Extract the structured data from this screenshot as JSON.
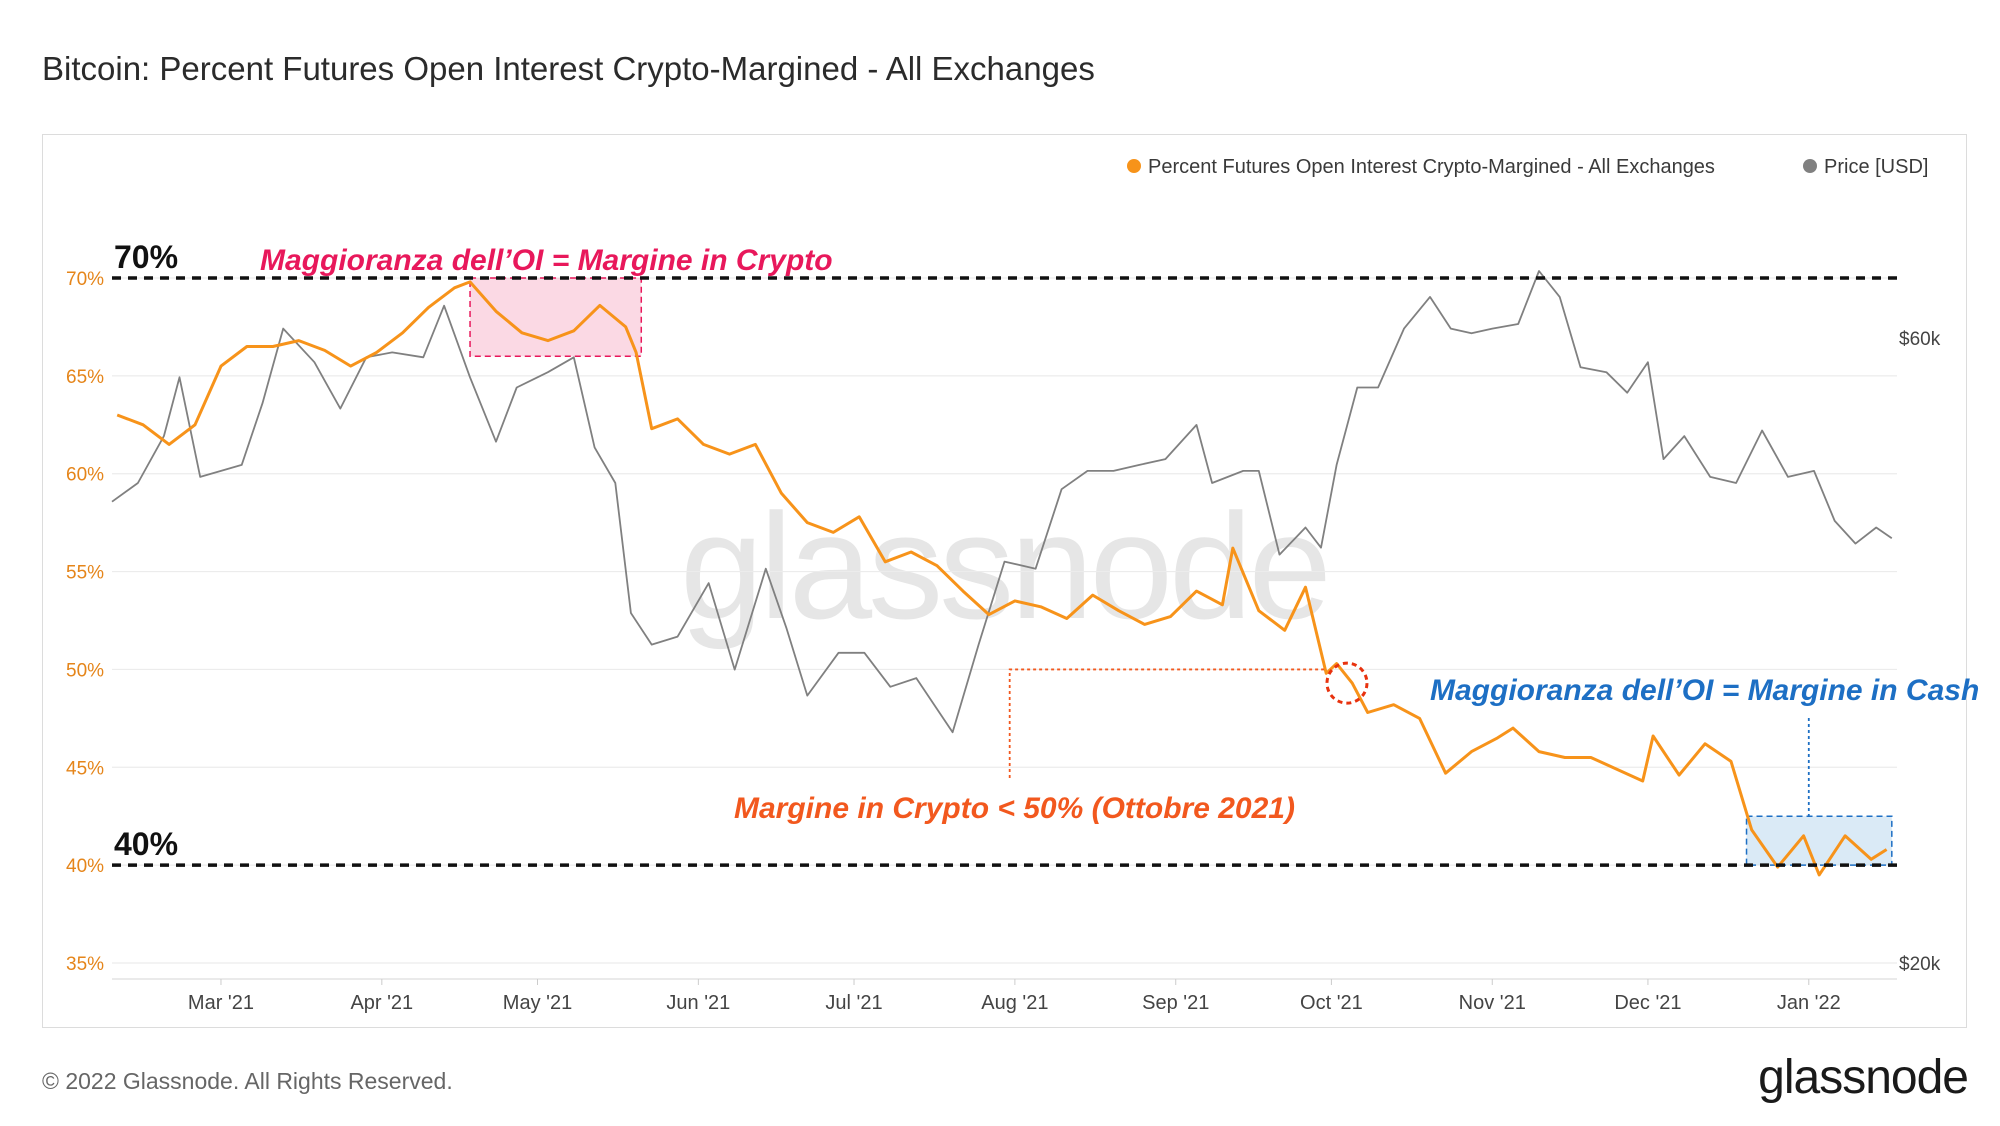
{
  "title": "Bitcoin: Percent Futures Open Interest Crypto-Margined - All Exchanges",
  "footer": {
    "copyright": "© 2022 Glassnode. All Rights Reserved.",
    "logo_text": "glassnode",
    "watermark": "glassnode"
  },
  "colors": {
    "oi_series": "#f7931a",
    "price_series": "#808080",
    "crypto_annotation": "#e8185b",
    "cash_annotation": "#1d6fc4",
    "threshold_annotation": "#f2581e",
    "reference_lines": "#111111"
  },
  "chart_data": {
    "type": "line",
    "title": "Bitcoin: Percent Futures Open Interest Crypto-Margined - All Exchanges",
    "x_range": [
      "2021-02-08",
      "2022-01-18"
    ],
    "x_tick_labels": [
      "Mar '21",
      "Apr '21",
      "May '21",
      "Jun '21",
      "Jul '21",
      "Aug '21",
      "Sep '21",
      "Oct '21",
      "Nov '21",
      "Dec '21",
      "Jan '22"
    ],
    "y_left": {
      "label": "Percent Futures Open Interest Crypto-Margined",
      "range": [
        35,
        70
      ],
      "tick_labels": [
        "35%",
        "40%",
        "45%",
        "50%",
        "55%",
        "60%",
        "65%",
        "70%"
      ]
    },
    "y_right": {
      "label": "Price [USD]",
      "scale": "log",
      "tick_labels": [
        "$20k",
        "$60k"
      ]
    },
    "legend": {
      "position": "top-right",
      "entries": [
        "Percent Futures Open Interest Crypto-Margined - All Exchanges",
        "Price [USD]"
      ]
    },
    "series": [
      {
        "name": "Percent Futures Open Interest Crypto-Margined - All Exchanges",
        "axis": "left",
        "points": [
          [
            "2021-02-09",
            63.0
          ],
          [
            "2021-02-14",
            62.5
          ],
          [
            "2021-02-19",
            61.5
          ],
          [
            "2021-02-24",
            62.5
          ],
          [
            "2021-03-01",
            65.5
          ],
          [
            "2021-03-06",
            66.5
          ],
          [
            "2021-03-11",
            66.5
          ],
          [
            "2021-03-16",
            66.8
          ],
          [
            "2021-03-21",
            66.3
          ],
          [
            "2021-03-26",
            65.5
          ],
          [
            "2021-03-31",
            66.2
          ],
          [
            "2021-04-05",
            67.2
          ],
          [
            "2021-04-10",
            68.5
          ],
          [
            "2021-04-15",
            69.5
          ],
          [
            "2021-04-18",
            69.8
          ],
          [
            "2021-04-23",
            68.3
          ],
          [
            "2021-04-28",
            67.2
          ],
          [
            "2021-05-03",
            66.8
          ],
          [
            "2021-05-08",
            67.3
          ],
          [
            "2021-05-13",
            68.6
          ],
          [
            "2021-05-18",
            67.5
          ],
          [
            "2021-05-20",
            66.2
          ],
          [
            "2021-05-23",
            62.3
          ],
          [
            "2021-05-28",
            62.8
          ],
          [
            "2021-06-02",
            61.5
          ],
          [
            "2021-06-07",
            61.0
          ],
          [
            "2021-06-12",
            61.5
          ],
          [
            "2021-06-17",
            59.0
          ],
          [
            "2021-06-22",
            57.5
          ],
          [
            "2021-06-27",
            57.0
          ],
          [
            "2021-07-02",
            57.8
          ],
          [
            "2021-07-07",
            55.5
          ],
          [
            "2021-07-12",
            56.0
          ],
          [
            "2021-07-17",
            55.3
          ],
          [
            "2021-07-22",
            54.0
          ],
          [
            "2021-07-27",
            52.8
          ],
          [
            "2021-08-01",
            53.5
          ],
          [
            "2021-08-06",
            53.2
          ],
          [
            "2021-08-11",
            52.6
          ],
          [
            "2021-08-16",
            53.8
          ],
          [
            "2021-08-21",
            53.0
          ],
          [
            "2021-08-26",
            52.3
          ],
          [
            "2021-08-31",
            52.7
          ],
          [
            "2021-09-05",
            54.0
          ],
          [
            "2021-09-10",
            53.3
          ],
          [
            "2021-09-12",
            56.2
          ],
          [
            "2021-09-17",
            53.0
          ],
          [
            "2021-09-22",
            52.0
          ],
          [
            "2021-09-26",
            54.2
          ],
          [
            "2021-09-30",
            49.8
          ],
          [
            "2021-10-02",
            50.3
          ],
          [
            "2021-10-05",
            49.3
          ],
          [
            "2021-10-08",
            47.8
          ],
          [
            "2021-10-13",
            48.2
          ],
          [
            "2021-10-18",
            47.5
          ],
          [
            "2021-10-23",
            44.7
          ],
          [
            "2021-10-28",
            45.8
          ],
          [
            "2021-11-02",
            46.5
          ],
          [
            "2021-11-05",
            47.0
          ],
          [
            "2021-11-10",
            45.8
          ],
          [
            "2021-11-15",
            45.5
          ],
          [
            "2021-11-20",
            45.5
          ],
          [
            "2021-11-25",
            44.9
          ],
          [
            "2021-11-30",
            44.3
          ],
          [
            "2021-12-02",
            46.6
          ],
          [
            "2021-12-07",
            44.6
          ],
          [
            "2021-12-12",
            46.2
          ],
          [
            "2021-12-17",
            45.3
          ],
          [
            "2021-12-21",
            41.8
          ],
          [
            "2021-12-26",
            39.9
          ],
          [
            "2021-12-31",
            41.5
          ],
          [
            "2022-01-03",
            39.5
          ],
          [
            "2022-01-08",
            41.5
          ],
          [
            "2022-01-13",
            40.3
          ],
          [
            "2022-01-16",
            40.8
          ]
        ]
      },
      {
        "name": "Price [USD]",
        "axis": "right",
        "points": [
          [
            "2021-02-08",
            45000
          ],
          [
            "2021-02-13",
            46500
          ],
          [
            "2021-02-18",
            50500
          ],
          [
            "2021-02-21",
            56000
          ],
          [
            "2021-02-25",
            47000
          ],
          [
            "2021-03-01",
            47500
          ],
          [
            "2021-03-05",
            48000
          ],
          [
            "2021-03-09",
            53500
          ],
          [
            "2021-03-13",
            61000
          ],
          [
            "2021-03-19",
            57500
          ],
          [
            "2021-03-24",
            53000
          ],
          [
            "2021-03-29",
            58000
          ],
          [
            "2021-04-03",
            58500
          ],
          [
            "2021-04-09",
            58000
          ],
          [
            "2021-04-13",
            63500
          ],
          [
            "2021-04-18",
            56000
          ],
          [
            "2021-04-23",
            50000
          ],
          [
            "2021-04-27",
            55000
          ],
          [
            "2021-05-03",
            56500
          ],
          [
            "2021-05-08",
            58000
          ],
          [
            "2021-05-12",
            49500
          ],
          [
            "2021-05-16",
            46500
          ],
          [
            "2021-05-19",
            37000
          ],
          [
            "2021-05-23",
            35000
          ],
          [
            "2021-05-28",
            35500
          ],
          [
            "2021-06-03",
            39000
          ],
          [
            "2021-06-08",
            33500
          ],
          [
            "2021-06-14",
            40000
          ],
          [
            "2021-06-18",
            36000
          ],
          [
            "2021-06-22",
            32000
          ],
          [
            "2021-06-28",
            34500
          ],
          [
            "2021-07-03",
            34500
          ],
          [
            "2021-07-08",
            32500
          ],
          [
            "2021-07-13",
            33000
          ],
          [
            "2021-07-20",
            30000
          ],
          [
            "2021-07-25",
            35000
          ],
          [
            "2021-07-30",
            40500
          ],
          [
            "2021-08-05",
            40000
          ],
          [
            "2021-08-10",
            46000
          ],
          [
            "2021-08-15",
            47500
          ],
          [
            "2021-08-20",
            47500
          ],
          [
            "2021-08-25",
            48000
          ],
          [
            "2021-08-30",
            48500
          ],
          [
            "2021-09-05",
            51500
          ],
          [
            "2021-09-08",
            46500
          ],
          [
            "2021-09-14",
            47500
          ],
          [
            "2021-09-17",
            47500
          ],
          [
            "2021-09-21",
            41000
          ],
          [
            "2021-09-26",
            43000
          ],
          [
            "2021-09-29",
            41500
          ],
          [
            "2021-10-02",
            48000
          ],
          [
            "2021-10-06",
            55000
          ],
          [
            "2021-10-10",
            55000
          ],
          [
            "2021-10-15",
            61000
          ],
          [
            "2021-10-20",
            64500
          ],
          [
            "2021-10-24",
            61000
          ],
          [
            "2021-10-28",
            60500
          ],
          [
            "2021-11-01",
            61000
          ],
          [
            "2021-11-06",
            61500
          ],
          [
            "2021-11-10",
            67500
          ],
          [
            "2021-11-14",
            64500
          ],
          [
            "2021-11-18",
            57000
          ],
          [
            "2021-11-23",
            56500
          ],
          [
            "2021-11-27",
            54500
          ],
          [
            "2021-12-01",
            57500
          ],
          [
            "2021-12-04",
            48500
          ],
          [
            "2021-12-08",
            50500
          ],
          [
            "2021-12-13",
            47000
          ],
          [
            "2021-12-18",
            46500
          ],
          [
            "2021-12-23",
            51000
          ],
          [
            "2021-12-28",
            47000
          ],
          [
            "2022-01-02",
            47500
          ],
          [
            "2022-01-06",
            43500
          ],
          [
            "2022-01-10",
            41800
          ],
          [
            "2022-01-14",
            43000
          ],
          [
            "2022-01-17",
            42200
          ]
        ]
      }
    ],
    "reference_lines": [
      {
        "value": 70,
        "label": "70%",
        "style": "dashed"
      },
      {
        "value": 40,
        "label": "40%",
        "style": "dashed"
      }
    ],
    "annotations": [
      {
        "text": "Maggioranza dell’OI = Margine in Crypto",
        "region": "mid-April to late May 2021, 66%–70%"
      },
      {
        "text": "Margine in Crypto < 50% (Ottobre 2021)",
        "target": "early October 2021, ~49%"
      },
      {
        "text": "Maggioranza dell’OI = Margine in Cash",
        "region": "late December 2021 to mid January 2022, 40%–42.5%"
      }
    ]
  }
}
